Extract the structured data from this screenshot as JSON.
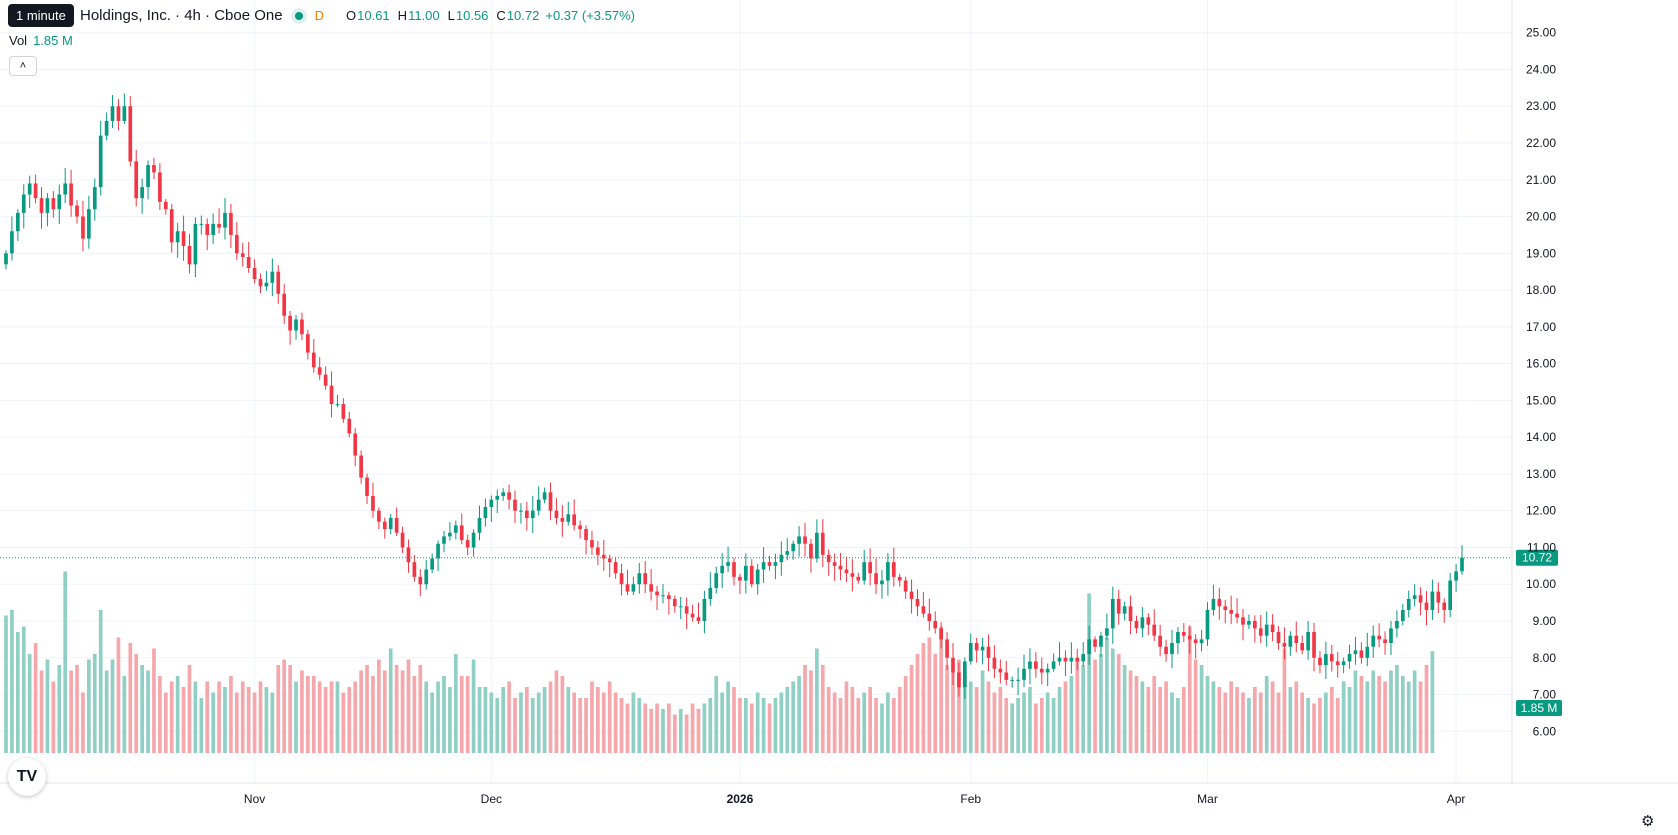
{
  "header": {
    "tooltip": "1 minute",
    "title": "Holdings, Inc. · 4h · Cboe One",
    "interval_badge": "D",
    "open_label": "O",
    "open": "10.61",
    "high_label": "H",
    "high": "11.00",
    "low_label": "L",
    "low": "10.56",
    "close_label": "C",
    "close": "10.72",
    "change": "+0.37 (+3.57%)",
    "vol_label": "Vol",
    "vol_value": "1.85 M",
    "collapse_icon": "chevron-up-icon"
  },
  "colors": {
    "up": "#089981",
    "down": "#f23645",
    "vol_up": "#8fcfc4",
    "vol_down": "#f5a7ab"
  },
  "chart_data": {
    "type": "candlestick",
    "title": "",
    "price_axis": {
      "ticks": [
        "25.00",
        "24.00",
        "23.00",
        "22.00",
        "21.00",
        "20.00",
        "19.00",
        "18.00",
        "17.00",
        "16.00",
        "15.00",
        "14.00",
        "13.00",
        "12.00",
        "11.00",
        "10.00",
        "9.00",
        "8.00",
        "7.00",
        "6.00"
      ],
      "range": [
        5.6,
        25.4
      ]
    },
    "time_axis": {
      "labels": [
        "Nov",
        "Dec",
        "2026",
        "Feb",
        "Mar",
        "Apr"
      ]
    },
    "last_price": "10.72",
    "last_volume": "1.85 M",
    "close_series": [
      19.0,
      19.6,
      20.1,
      20.6,
      20.9,
      20.5,
      20.1,
      20.5,
      20.2,
      20.6,
      20.9,
      20.3,
      20.0,
      19.4,
      20.2,
      20.8,
      22.2,
      22.6,
      23.0,
      22.6,
      23.0,
      21.5,
      20.5,
      20.8,
      21.4,
      21.2,
      20.4,
      20.2,
      19.3,
      19.6,
      19.2,
      18.7,
      19.8,
      19.8,
      19.5,
      19.8,
      19.7,
      20.1,
      19.5,
      19.0,
      18.9,
      18.6,
      18.3,
      18.1,
      18.2,
      18.5,
      17.9,
      17.3,
      16.9,
      17.2,
      16.8,
      16.3,
      15.9,
      15.7,
      15.4,
      14.9,
      14.9,
      14.5,
      14.1,
      13.5,
      12.9,
      12.4,
      12.0,
      11.7,
      11.5,
      11.8,
      11.4,
      11.0,
      10.6,
      10.2,
      10.0,
      10.4,
      10.7,
      11.1,
      11.3,
      11.4,
      11.6,
      11.2,
      11.0,
      11.4,
      11.8,
      12.1,
      12.3,
      12.4,
      12.5,
      12.3,
      12.0,
      12.0,
      11.8,
      12.0,
      12.3,
      12.5,
      12.0,
      11.8,
      11.7,
      11.9,
      11.6,
      11.5,
      11.2,
      11.0,
      10.8,
      10.7,
      10.6,
      10.3,
      10.0,
      9.8,
      10.0,
      10.3,
      10.0,
      9.8,
      9.7,
      9.7,
      9.6,
      9.4,
      9.4,
      9.2,
      9.1,
      9.0,
      9.6,
      9.9,
      10.3,
      10.5,
      10.6,
      10.2,
      10.1,
      10.5,
      10.0,
      10.4,
      10.6,
      10.5,
      10.6,
      10.8,
      10.9,
      11.1,
      11.3,
      11.1,
      10.7,
      11.4,
      10.8,
      10.6,
      10.5,
      10.4,
      10.3,
      10.2,
      10.1,
      10.6,
      10.3,
      10.0,
      10.1,
      10.6,
      10.2,
      10.1,
      9.8,
      9.6,
      9.4,
      9.2,
      9.0,
      8.8,
      8.5,
      8.0,
      7.6,
      7.2,
      7.9,
      8.4,
      8.2,
      8.3,
      8.0,
      7.7,
      7.6,
      7.4,
      7.4,
      7.4,
      7.7,
      7.9,
      7.7,
      7.6,
      7.7,
      7.9,
      8.0,
      7.9,
      8.0,
      7.9,
      8.1,
      8.5,
      8.3,
      8.6,
      8.8,
      9.6,
      9.2,
      9.4,
      9.0,
      8.8,
      9.1,
      8.9,
      8.6,
      8.3,
      8.1,
      8.4,
      8.7,
      8.6,
      8.5,
      8.4,
      8.5,
      9.3,
      9.6,
      9.4,
      9.3,
      9.2,
      9.1,
      8.9,
      9.0,
      8.8,
      8.6,
      8.9,
      8.7,
      8.4,
      8.3,
      8.6,
      8.4,
      8.2,
      8.7,
      8.0,
      7.8,
      8.1,
      7.9,
      7.8,
      7.9,
      8.1,
      8.2,
      8.0,
      8.3,
      8.6,
      8.5,
      8.4,
      8.8,
      9.0,
      9.3,
      9.6,
      9.7,
      9.5,
      9.3,
      9.8,
      9.5,
      9.3,
      10.1,
      10.35,
      10.72
    ],
    "volume_series_m": [
      2.5,
      2.6,
      2.2,
      2.3,
      1.8,
      2.0,
      1.5,
      1.7,
      1.3,
      1.6,
      3.3,
      1.5,
      1.6,
      1.1,
      1.7,
      1.8,
      2.6,
      1.5,
      1.7,
      2.1,
      1.4,
      2.0,
      1.8,
      1.6,
      1.5,
      1.9,
      1.4,
      1.1,
      1.3,
      1.4,
      1.2,
      1.6,
      1.3,
      1.0,
      1.3,
      1.1,
      1.3,
      1.2,
      1.4,
      1.1,
      1.3,
      1.2,
      1.1,
      1.3,
      1.2,
      1.1,
      1.6,
      1.7,
      1.6,
      1.3,
      1.5,
      1.4,
      1.4,
      1.3,
      1.2,
      1.3,
      1.3,
      1.1,
      1.2,
      1.3,
      1.5,
      1.6,
      1.4,
      1.7,
      1.5,
      1.9,
      1.6,
      1.5,
      1.7,
      1.4,
      1.6,
      1.3,
      1.1,
      1.3,
      1.4,
      1.2,
      1.8,
      1.4,
      1.4,
      1.7,
      1.2,
      1.2,
      1.1,
      1.0,
      1.2,
      1.3,
      1.0,
      1.1,
      1.2,
      1.0,
      1.1,
      1.2,
      1.3,
      1.5,
      1.4,
      1.2,
      1.1,
      1.0,
      1.0,
      1.3,
      1.2,
      1.1,
      1.3,
      1.1,
      1.0,
      0.9,
      1.1,
      1.0,
      0.9,
      0.8,
      0.9,
      0.8,
      0.9,
      0.7,
      0.8,
      0.7,
      0.9,
      0.8,
      0.9,
      1.0,
      1.4,
      1.1,
      1.3,
      1.2,
      1.0,
      1.0,
      0.9,
      1.1,
      1.0,
      0.9,
      1.0,
      1.1,
      1.2,
      1.3,
      1.4,
      1.6,
      1.5,
      1.9,
      1.6,
      1.2,
      1.1,
      1.0,
      1.3,
      1.2,
      1.0,
      1.1,
      1.2,
      1.0,
      0.9,
      1.1,
      1.0,
      1.2,
      1.4,
      1.6,
      1.8,
      2.0,
      2.1,
      1.8,
      2.3,
      1.6,
      1.5,
      1.7,
      1.4,
      1.3,
      1.2,
      1.5,
      1.3,
      1.1,
      1.2,
      1.0,
      0.9,
      1.0,
      1.1,
      1.2,
      0.9,
      1.0,
      1.1,
      1.0,
      1.2,
      1.3,
      1.4,
      1.7,
      1.6,
      2.9,
      1.7,
      1.8,
      2.1,
      1.9,
      1.8,
      1.6,
      1.5,
      1.4,
      1.3,
      1.2,
      1.4,
      1.2,
      1.3,
      1.1,
      1.0,
      1.2,
      2.3,
      1.7,
      1.6,
      1.4,
      1.3,
      1.2,
      1.1,
      1.3,
      1.2,
      1.1,
      1.0,
      1.2,
      1.1,
      1.4,
      1.3,
      1.1,
      1.9,
      1.2,
      1.3,
      1.1,
      1.0,
      0.9,
      1.0,
      1.1,
      1.2,
      1.0,
      1.3,
      1.2,
      1.5,
      1.4,
      1.3,
      1.5,
      1.4,
      1.3,
      1.5,
      1.6,
      1.4,
      1.3,
      1.5,
      1.3,
      1.6,
      1.85
    ],
    "min_price": 7.2,
    "max_price": 23.4
  }
}
